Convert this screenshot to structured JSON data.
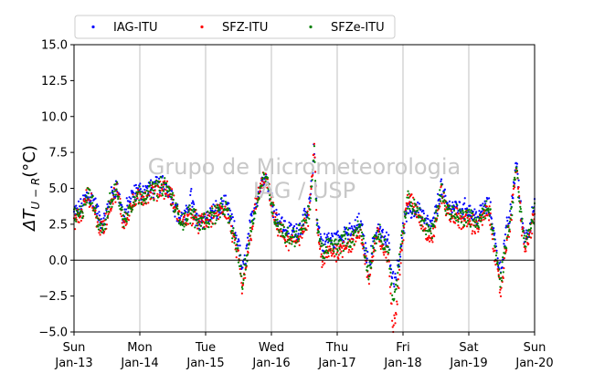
{
  "chart_data": {
    "type": "scatter",
    "ylabel_text": "ΔT",
    "ylabel_subscript": "U − R",
    "ylabel_unit": "(°C)",
    "xlim": [
      0,
      7
    ],
    "ylim": [
      -5,
      15
    ],
    "yticks": [
      -5.0,
      -2.5,
      0.0,
      2.5,
      5.0,
      7.5,
      10.0,
      12.5,
      15.0
    ],
    "ytick_labels": [
      "−5.0",
      "−2.5",
      "0.0",
      "2.5",
      "5.0",
      "7.5",
      "10.0",
      "12.5",
      "15.0"
    ],
    "xticks": [
      0,
      1,
      2,
      3,
      4,
      5,
      6,
      7
    ],
    "xtick_labels": [
      [
        "Sun",
        "Jan-13"
      ],
      [
        "Mon",
        "Jan-14"
      ],
      [
        "Tue",
        "Jan-15"
      ],
      [
        "Wed",
        "Jan-16"
      ],
      [
        "Thu",
        "Jan-17"
      ],
      [
        "Fri",
        "Jan-18"
      ],
      [
        "Sat",
        "Jan-19"
      ],
      [
        "Sun",
        "Jan-20"
      ]
    ],
    "grid": "vertical",
    "zero_line": true,
    "legend": {
      "placement": "top",
      "columns": 3
    },
    "watermark": [
      "Grupo de Micrometeorologia",
      "IAG / USP"
    ],
    "series": [
      {
        "name": "IAG-ITU",
        "color": "#0000ff",
        "keypoints": [
          [
            0.0,
            3.3
          ],
          [
            0.1,
            3.6
          ],
          [
            0.2,
            4.6
          ],
          [
            0.3,
            4.2
          ],
          [
            0.38,
            3.0
          ],
          [
            0.45,
            2.5
          ],
          [
            0.55,
            4.3
          ],
          [
            0.65,
            5.2
          ],
          [
            0.75,
            3.0
          ],
          [
            0.85,
            4.2
          ],
          [
            0.95,
            4.8
          ],
          [
            1.05,
            4.8
          ],
          [
            1.2,
            5.0
          ],
          [
            1.35,
            5.4
          ],
          [
            1.45,
            4.9
          ],
          [
            1.55,
            3.5
          ],
          [
            1.62,
            2.8
          ],
          [
            1.7,
            3.0
          ],
          [
            1.78,
            4.6
          ],
          [
            1.85,
            2.7
          ],
          [
            1.95,
            2.9
          ],
          [
            2.05,
            3.0
          ],
          [
            2.12,
            3.4
          ],
          [
            2.2,
            3.5
          ],
          [
            2.28,
            3.9
          ],
          [
            2.35,
            3.4
          ],
          [
            2.42,
            2.3
          ],
          [
            2.5,
            1.2
          ],
          [
            2.56,
            -0.9
          ],
          [
            2.62,
            0.7
          ],
          [
            2.68,
            2.4
          ],
          [
            2.75,
            3.9
          ],
          [
            2.82,
            4.9
          ],
          [
            2.9,
            6.0
          ],
          [
            2.95,
            5.3
          ],
          [
            3.05,
            3.3
          ],
          [
            3.15,
            2.6
          ],
          [
            3.25,
            2.0
          ],
          [
            3.35,
            2.0
          ],
          [
            3.45,
            2.4
          ],
          [
            3.55,
            3.2
          ],
          [
            3.6,
            4.5
          ],
          [
            3.65,
            7.9
          ],
          [
            3.7,
            2.5
          ],
          [
            3.78,
            1.0
          ],
          [
            3.85,
            1.5
          ],
          [
            3.95,
            1.4
          ],
          [
            4.05,
            1.6
          ],
          [
            4.12,
            2.0
          ],
          [
            4.2,
            1.8
          ],
          [
            4.28,
            2.3
          ],
          [
            4.35,
            2.7
          ],
          [
            4.42,
            1.0
          ],
          [
            4.48,
            -0.5
          ],
          [
            4.55,
            1.2
          ],
          [
            4.62,
            2.3
          ],
          [
            4.7,
            1.5
          ],
          [
            4.78,
            1.2
          ],
          [
            4.85,
            -1.4
          ],
          [
            4.92,
            -0.6
          ],
          [
            4.98,
            1.5
          ],
          [
            5.05,
            3.2
          ],
          [
            5.15,
            3.4
          ],
          [
            5.25,
            3.6
          ],
          [
            5.35,
            2.6
          ],
          [
            5.45,
            2.3
          ],
          [
            5.52,
            3.8
          ],
          [
            5.58,
            5.2
          ],
          [
            5.62,
            4.4
          ],
          [
            5.7,
            3.6
          ],
          [
            5.8,
            3.8
          ],
          [
            5.9,
            3.5
          ],
          [
            5.98,
            3.7
          ],
          [
            6.05,
            3.2
          ],
          [
            6.15,
            3.0
          ],
          [
            6.22,
            3.6
          ],
          [
            6.3,
            3.8
          ],
          [
            6.35,
            3.0
          ],
          [
            6.42,
            0.6
          ],
          [
            6.48,
            -0.8
          ],
          [
            6.52,
            0.3
          ],
          [
            6.58,
            2.3
          ],
          [
            6.65,
            3.6
          ],
          [
            6.72,
            7.0
          ],
          [
            6.8,
            3.0
          ],
          [
            6.86,
            1.5
          ],
          [
            6.93,
            2.5
          ],
          [
            7.0,
            3.6
          ]
        ]
      },
      {
        "name": "SFZ-ITU",
        "color": "#ff0000",
        "keypoints": [
          [
            0.0,
            2.9
          ],
          [
            0.1,
            2.9
          ],
          [
            0.2,
            4.5
          ],
          [
            0.3,
            3.7
          ],
          [
            0.38,
            2.3
          ],
          [
            0.45,
            2.2
          ],
          [
            0.55,
            3.8
          ],
          [
            0.65,
            5.0
          ],
          [
            0.75,
            2.5
          ],
          [
            0.85,
            3.6
          ],
          [
            0.95,
            4.2
          ],
          [
            1.05,
            4.4
          ],
          [
            1.2,
            4.7
          ],
          [
            1.35,
            5.1
          ],
          [
            1.45,
            4.8
          ],
          [
            1.55,
            3.4
          ],
          [
            1.65,
            2.6
          ],
          [
            1.78,
            3.2
          ],
          [
            1.9,
            2.5
          ],
          [
            2.0,
            2.7
          ],
          [
            2.1,
            3.0
          ],
          [
            2.2,
            3.3
          ],
          [
            2.28,
            3.6
          ],
          [
            2.35,
            3.0
          ],
          [
            2.42,
            1.5
          ],
          [
            2.5,
            0.0
          ],
          [
            2.56,
            -2.2
          ],
          [
            2.62,
            -0.3
          ],
          [
            2.68,
            1.6
          ],
          [
            2.75,
            3.6
          ],
          [
            2.82,
            4.8
          ],
          [
            2.9,
            5.8
          ],
          [
            2.95,
            5.0
          ],
          [
            3.05,
            2.8
          ],
          [
            3.15,
            1.9
          ],
          [
            3.25,
            1.2
          ],
          [
            3.35,
            1.3
          ],
          [
            3.45,
            1.8
          ],
          [
            3.55,
            2.7
          ],
          [
            3.6,
            4.5
          ],
          [
            3.65,
            8.0
          ],
          [
            3.7,
            1.8
          ],
          [
            3.78,
            -0.3
          ],
          [
            3.85,
            0.5
          ],
          [
            3.95,
            0.6
          ],
          [
            4.05,
            0.7
          ],
          [
            4.12,
            1.2
          ],
          [
            4.2,
            1.0
          ],
          [
            4.28,
            1.5
          ],
          [
            4.35,
            2.0
          ],
          [
            4.42,
            0.3
          ],
          [
            4.48,
            -1.4
          ],
          [
            4.55,
            0.4
          ],
          [
            4.62,
            1.8
          ],
          [
            4.7,
            0.8
          ],
          [
            4.78,
            0.2
          ],
          [
            4.85,
            -4.8
          ],
          [
            4.9,
            -3.2
          ],
          [
            4.95,
            -0.5
          ],
          [
            5.02,
            2.5
          ],
          [
            5.08,
            4.6
          ],
          [
            5.15,
            3.8
          ],
          [
            5.25,
            3.0
          ],
          [
            5.35,
            2.0
          ],
          [
            5.45,
            1.6
          ],
          [
            5.52,
            3.0
          ],
          [
            5.58,
            4.8
          ],
          [
            5.62,
            4.0
          ],
          [
            5.7,
            3.2
          ],
          [
            5.8,
            3.0
          ],
          [
            5.9,
            2.7
          ],
          [
            5.98,
            2.8
          ],
          [
            6.05,
            2.5
          ],
          [
            6.15,
            2.4
          ],
          [
            6.22,
            3.0
          ],
          [
            6.3,
            3.4
          ],
          [
            6.35,
            2.2
          ],
          [
            6.42,
            -0.5
          ],
          [
            6.48,
            -2.2
          ],
          [
            6.52,
            -1.0
          ],
          [
            6.58,
            1.5
          ],
          [
            6.65,
            3.2
          ],
          [
            6.72,
            6.6
          ],
          [
            6.8,
            2.6
          ],
          [
            6.86,
            0.6
          ],
          [
            6.93,
            1.8
          ],
          [
            7.0,
            3.2
          ]
        ]
      },
      {
        "name": "SFZe-ITU",
        "color": "#008000",
        "keypoints": [
          [
            0.0,
            3.0
          ],
          [
            0.1,
            3.1
          ],
          [
            0.2,
            4.5
          ],
          [
            0.3,
            3.9
          ],
          [
            0.38,
            2.6
          ],
          [
            0.45,
            2.3
          ],
          [
            0.55,
            4.0
          ],
          [
            0.65,
            5.1
          ],
          [
            0.75,
            2.7
          ],
          [
            0.85,
            3.8
          ],
          [
            0.95,
            4.4
          ],
          [
            1.05,
            4.6
          ],
          [
            1.2,
            4.9
          ],
          [
            1.35,
            5.2
          ],
          [
            1.45,
            4.8
          ],
          [
            1.55,
            3.4
          ],
          [
            1.65,
            2.7
          ],
          [
            1.78,
            3.3
          ],
          [
            1.9,
            2.6
          ],
          [
            2.0,
            2.8
          ],
          [
            2.1,
            3.1
          ],
          [
            2.2,
            3.4
          ],
          [
            2.28,
            3.7
          ],
          [
            2.35,
            3.1
          ],
          [
            2.42,
            1.8
          ],
          [
            2.5,
            0.4
          ],
          [
            2.56,
            -1.7
          ],
          [
            2.62,
            0.1
          ],
          [
            2.68,
            1.9
          ],
          [
            2.75,
            3.7
          ],
          [
            2.82,
            4.8
          ],
          [
            2.9,
            5.9
          ],
          [
            2.95,
            5.1
          ],
          [
            3.05,
            3.0
          ],
          [
            3.15,
            2.2
          ],
          [
            3.25,
            1.6
          ],
          [
            3.35,
            1.6
          ],
          [
            3.45,
            2.1
          ],
          [
            3.55,
            2.9
          ],
          [
            3.6,
            4.4
          ],
          [
            3.65,
            7.6
          ],
          [
            3.7,
            2.1
          ],
          [
            3.78,
            0.3
          ],
          [
            3.85,
            1.0
          ],
          [
            3.95,
            1.0
          ],
          [
            4.05,
            1.1
          ],
          [
            4.12,
            1.6
          ],
          [
            4.2,
            1.4
          ],
          [
            4.28,
            1.9
          ],
          [
            4.35,
            2.4
          ],
          [
            4.42,
            0.7
          ],
          [
            4.48,
            -1.0
          ],
          [
            4.55,
            0.8
          ],
          [
            4.62,
            2.0
          ],
          [
            4.7,
            1.2
          ],
          [
            4.78,
            0.6
          ],
          [
            4.85,
            -3.0
          ],
          [
            4.9,
            -2.0
          ],
          [
            4.95,
            0.2
          ],
          [
            5.02,
            2.8
          ],
          [
            5.08,
            4.2
          ],
          [
            5.15,
            3.7
          ],
          [
            5.25,
            3.2
          ],
          [
            5.35,
            2.3
          ],
          [
            5.45,
            2.0
          ],
          [
            5.52,
            3.4
          ],
          [
            5.58,
            5.0
          ],
          [
            5.62,
            4.2
          ],
          [
            5.7,
            3.4
          ],
          [
            5.8,
            3.3
          ],
          [
            5.9,
            3.0
          ],
          [
            5.98,
            3.2
          ],
          [
            6.05,
            2.8
          ],
          [
            6.15,
            2.7
          ],
          [
            6.22,
            3.3
          ],
          [
            6.3,
            3.6
          ],
          [
            6.35,
            2.6
          ],
          [
            6.42,
            0.0
          ],
          [
            6.48,
            -1.6
          ],
          [
            6.52,
            -0.4
          ],
          [
            6.58,
            1.9
          ],
          [
            6.65,
            3.4
          ],
          [
            6.72,
            6.6
          ],
          [
            6.8,
            2.8
          ],
          [
            6.86,
            1.0
          ],
          [
            6.93,
            2.1
          ],
          [
            7.0,
            3.4
          ]
        ]
      }
    ]
  }
}
